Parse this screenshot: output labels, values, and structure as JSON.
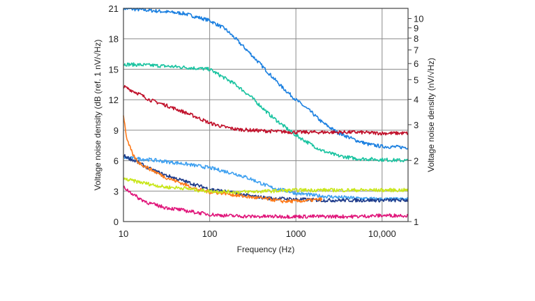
{
  "chart_data": {
    "type": "line",
    "xlabel": "Frequency (Hz)",
    "ylabel": "Voltage noise density  (dB (ref. 1 nV/√Hz)",
    "y2label": "Voltage noise density  (nV/√Hz)",
    "x_scale": "log",
    "xlim": [
      10,
      20000
    ],
    "ylim": [
      0,
      21
    ],
    "x_ticks": [
      {
        "value": 10,
        "label": "10"
      },
      {
        "value": 100,
        "label": "100"
      },
      {
        "value": 1000,
        "label": "1000"
      },
      {
        "value": 10000,
        "label": "10,000"
      }
    ],
    "y_ticks": [
      {
        "value": 0,
        "label": "0"
      },
      {
        "value": 3,
        "label": "3"
      },
      {
        "value": 6,
        "label": "6"
      },
      {
        "value": 9,
        "label": "9"
      },
      {
        "value": 12,
        "label": "12"
      },
      {
        "value": 15,
        "label": "15"
      },
      {
        "value": 18,
        "label": "18"
      },
      {
        "value": 21,
        "label": "21"
      }
    ],
    "y2_scale": "log",
    "y2_ticks": [
      {
        "value": 1,
        "label": "1"
      },
      {
        "value": 2,
        "label": "2"
      },
      {
        "value": 3,
        "label": "3"
      },
      {
        "value": 4,
        "label": "4"
      },
      {
        "value": 5,
        "label": "5"
      },
      {
        "value": 6,
        "label": "6"
      },
      {
        "value": 7,
        "label": "7"
      },
      {
        "value": 8,
        "label": "8"
      },
      {
        "value": 9,
        "label": "9"
      },
      {
        "value": 10,
        "label": "10"
      }
    ],
    "grid": true,
    "series": [
      {
        "color": "#1a7fe0",
        "x": [
          10,
          20,
          50,
          100,
          150,
          200,
          300,
          500,
          700,
          1000,
          1500,
          2000,
          3000,
          5000,
          7000,
          10000,
          20000
        ],
        "y": [
          21,
          20.8,
          20.5,
          19.8,
          19,
          18,
          16.5,
          14.5,
          13.2,
          12,
          10.8,
          9.8,
          8.8,
          8,
          7.6,
          7.4,
          7.3
        ]
      },
      {
        "color": "#19c3a0",
        "x": [
          10,
          20,
          50,
          100,
          200,
          300,
          500,
          700,
          1000,
          1500,
          2000,
          3000,
          5000,
          10000,
          20000
        ],
        "y": [
          15.5,
          15.4,
          15.2,
          15,
          13.5,
          12.3,
          10.5,
          9.5,
          8.5,
          7.6,
          7,
          6.5,
          6.2,
          6.1,
          6
        ]
      },
      {
        "color": "#c0102a",
        "x": [
          10,
          15,
          20,
          30,
          50,
          70,
          100,
          150,
          200,
          300,
          500,
          1000,
          2000,
          5000,
          10000,
          20000
        ],
        "y": [
          13.3,
          12.6,
          12,
          11.5,
          10.8,
          10.3,
          9.7,
          9.3,
          9.1,
          9,
          8.9,
          8.8,
          8.8,
          8.8,
          8.7,
          8.7
        ]
      },
      {
        "color": "#3ea0f0",
        "x": [
          10,
          20,
          50,
          100,
          200,
          300,
          500,
          1000,
          2000,
          5000,
          10000,
          20000
        ],
        "y": [
          6.3,
          6.1,
          5.7,
          5.3,
          4.7,
          4.2,
          3.4,
          2.8,
          2.5,
          2.3,
          2.2,
          2.2
        ]
      },
      {
        "color": "#1d3a8a",
        "x": [
          10,
          15,
          20,
          30,
          50,
          70,
          100,
          200,
          300,
          500,
          1000,
          2000,
          5000,
          10000,
          20000
        ],
        "y": [
          6.5,
          5.8,
          5.2,
          4.6,
          4,
          3.6,
          3.2,
          2.8,
          2.5,
          2.3,
          2.2,
          2.1,
          2.1,
          2.1,
          2.1
        ]
      },
      {
        "color": "#ff7a1a",
        "x": [
          10,
          11,
          13,
          15,
          20,
          30,
          50,
          70,
          100,
          150,
          200,
          300,
          500,
          700,
          1000,
          1500,
          2000
        ],
        "y": [
          10.5,
          8,
          6.5,
          5.8,
          5.2,
          4.4,
          3.7,
          3.2,
          2.9,
          2.8,
          2.6,
          2.4,
          2.2,
          2.0,
          2.0,
          2.1,
          2.2
        ]
      },
      {
        "color": "#c8e619",
        "x": [
          10,
          15,
          20,
          30,
          50,
          70,
          100,
          200,
          500,
          1000,
          2000,
          5000,
          10000,
          20000
        ],
        "y": [
          4.2,
          3.9,
          3.7,
          3.4,
          3.3,
          3.1,
          3,
          2.9,
          3,
          3.1,
          3.1,
          3.1,
          3.1,
          3.1
        ]
      },
      {
        "color": "#e0157a",
        "x": [
          10,
          12,
          15,
          20,
          30,
          50,
          70,
          100,
          150,
          200,
          300,
          500,
          1000,
          2000,
          5000,
          10000,
          20000
        ],
        "y": [
          3.4,
          2.9,
          2.3,
          1.8,
          1.4,
          1.1,
          0.9,
          0.7,
          0.6,
          0.55,
          0.5,
          0.5,
          0.5,
          0.5,
          0.5,
          0.6,
          0.6
        ]
      }
    ]
  }
}
